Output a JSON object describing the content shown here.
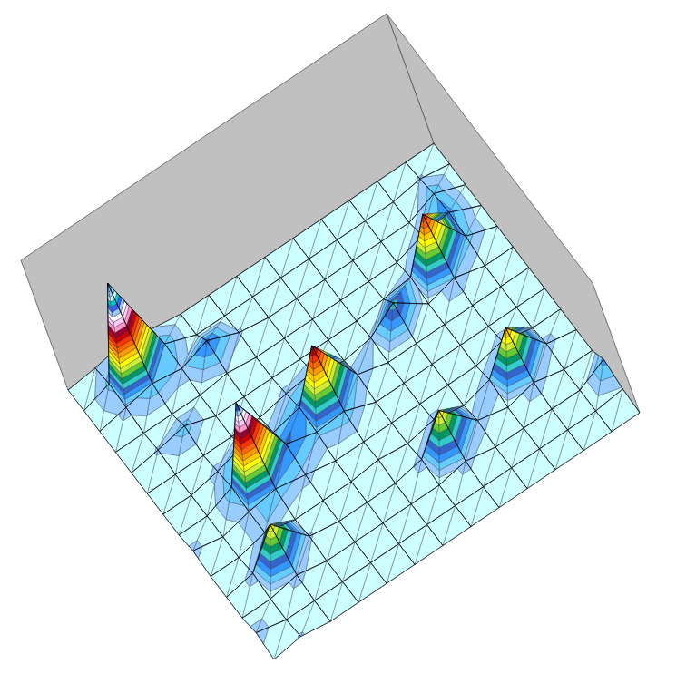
{
  "chart_data": {
    "type": "surface",
    "zlim": [
      0,
      13
    ],
    "grid": true,
    "tick_labels": false,
    "z": [
      [
        0,
        0,
        0,
        0,
        0,
        0,
        0,
        0,
        0,
        0,
        0.4,
        0.8,
        0.3,
        0
      ],
      [
        0,
        0.4,
        0,
        0,
        0,
        0,
        0,
        0,
        0,
        0,
        1,
        9,
        0.8,
        0
      ],
      [
        0,
        1,
        0,
        0,
        0,
        0,
        0,
        0,
        0.4,
        1.5,
        0.6,
        1,
        0.5,
        0
      ],
      [
        0,
        1.2,
        0.8,
        0,
        0,
        0,
        0,
        0,
        0,
        0.3,
        0,
        0,
        0,
        0
      ],
      [
        0,
        0.9,
        5,
        0.6,
        0.3,
        0,
        0,
        0,
        0,
        0,
        0,
        0.9,
        0.4,
        0
      ],
      [
        0,
        0,
        0.7,
        0,
        2,
        0.4,
        0,
        0.8,
        0.5,
        0,
        0,
        0,
        0,
        0
      ],
      [
        0,
        0,
        0,
        0,
        0,
        0,
        0.7,
        5.5,
        1.2,
        0.6,
        1.2,
        0.5,
        0,
        0
      ],
      [
        0,
        0,
        0,
        0,
        0,
        0,
        0,
        1,
        0.8,
        1.5,
        7.5,
        1,
        0,
        0
      ],
      [
        0,
        0,
        0.6,
        0,
        0,
        0,
        0,
        0,
        0,
        0.5,
        1,
        0.6,
        0,
        0.5
      ],
      [
        0,
        0.5,
        4,
        0.7,
        0,
        0.5,
        0,
        0.3,
        0,
        0,
        0,
        0.6,
        0,
        0
      ],
      [
        0,
        0,
        0.6,
        0,
        0.6,
        3.5,
        0.5,
        0,
        0,
        0,
        0.4,
        3.5,
        0.5,
        0
      ],
      [
        1.2,
        0,
        0,
        0,
        0,
        0.5,
        0,
        0,
        0,
        0,
        0,
        0.5,
        0,
        0
      ],
      [
        0.3,
        0,
        0,
        0,
        0,
        0,
        0,
        0,
        0,
        0,
        0,
        0,
        0,
        0.6
      ],
      [
        0,
        0,
        0,
        0,
        0,
        0,
        0,
        0,
        0,
        0,
        0,
        0,
        0.4,
        0
      ]
    ]
  }
}
